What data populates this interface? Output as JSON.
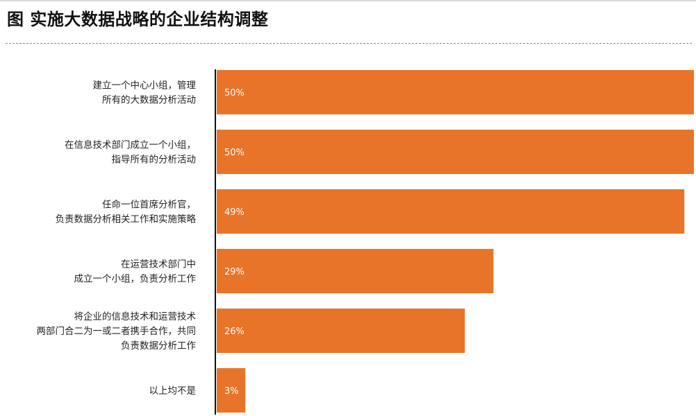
{
  "header": {
    "title": "图 实施大数据战略的企业结构调整"
  },
  "chart_data": {
    "type": "bar",
    "orientation": "horizontal",
    "title": "图 实施大数据战略的企业结构调整",
    "xlabel": "",
    "ylabel": "",
    "xlim": [
      0,
      50
    ],
    "grid": false,
    "bar_color": "#e8742a",
    "categories": [
      [
        "建立一个中心小组，管理",
        "所有的大数据分析活动"
      ],
      [
        "在信息技术部门成立一个小组，",
        "指导所有的分析活动"
      ],
      [
        "任命一位首席分析官，",
        "负责数据分析相关工作和实施策略"
      ],
      [
        "在运营技术部门中",
        "成立一个小组，负责分析工作"
      ],
      [
        "将企业的信息技术和运营技术",
        "两部门合二为一或二者携手合作，共同",
        "负责数据分析工作"
      ],
      [
        "以上均不是"
      ]
    ],
    "values": [
      50,
      50,
      49,
      29,
      26,
      3
    ],
    "value_labels": [
      "50%",
      "50%",
      "49%",
      "29%",
      "26%",
      "3%"
    ]
  }
}
